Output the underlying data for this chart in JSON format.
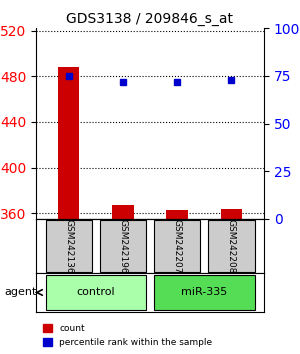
{
  "title": "GDS3138 / 209846_s_at",
  "samples": [
    "GSM242136",
    "GSM242196",
    "GSM242207",
    "GSM242208"
  ],
  "counts": [
    488,
    367,
    363,
    364
  ],
  "percentiles": [
    75,
    72,
    72,
    73
  ],
  "ylim_left": [
    355,
    522
  ],
  "ylim_right": [
    0,
    100
  ],
  "yticks_left": [
    360,
    400,
    440,
    480,
    520
  ],
  "yticks_right": [
    0,
    25,
    50,
    75,
    100
  ],
  "groups": [
    {
      "label": "control",
      "samples": [
        0,
        1
      ],
      "color": "#aaffaa"
    },
    {
      "label": "miR-335",
      "samples": [
        2,
        3
      ],
      "color": "#55dd55"
    }
  ],
  "bar_color": "#cc0000",
  "dot_color": "#0000cc",
  "grid_color": "#000000",
  "background_color": "#ffffff",
  "sample_box_color": "#cccccc",
  "agent_label": "agent",
  "legend_count_label": "count",
  "legend_percentile_label": "percentile rank within the sample"
}
